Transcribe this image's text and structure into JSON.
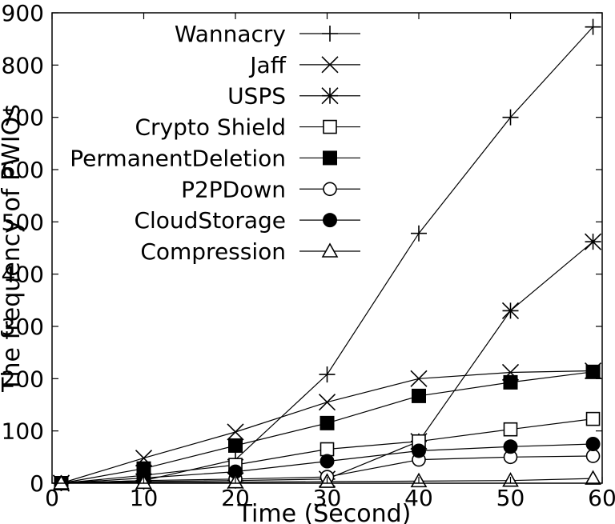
{
  "chart_data": {
    "type": "line",
    "title": "",
    "xlabel": "Time (Second)",
    "ylabel": "The frequency of PWIOs",
    "xlim": [
      0,
      60
    ],
    "ylim": [
      0,
      900
    ],
    "xticks": [
      0,
      10,
      20,
      30,
      40,
      50,
      60
    ],
    "yticks": [
      0,
      100,
      200,
      300,
      400,
      500,
      600,
      700,
      800,
      900
    ],
    "grid": false,
    "legend_position": "top-right",
    "x": [
      1,
      10,
      20,
      30,
      40,
      50,
      59
    ],
    "series": [
      {
        "name": "Wannacry",
        "marker": "plus",
        "values": [
          0,
          5,
          45,
          208,
          478,
          700,
          873
        ]
      },
      {
        "name": "Jaff",
        "marker": "cross",
        "values": [
          0,
          48,
          98,
          155,
          200,
          212,
          215
        ]
      },
      {
        "name": "USPS",
        "marker": "star",
        "values": [
          0,
          3,
          5,
          8,
          80,
          330,
          462
        ]
      },
      {
        "name": "Crypto Shield",
        "marker": "open-square",
        "values": [
          0,
          15,
          35,
          65,
          80,
          103,
          123
        ]
      },
      {
        "name": "PermanentDeletion",
        "marker": "filled-square",
        "values": [
          0,
          28,
          72,
          115,
          167,
          193,
          213
        ]
      },
      {
        "name": "P2PDown",
        "marker": "open-circle",
        "values": [
          0,
          5,
          8,
          12,
          45,
          50,
          52
        ]
      },
      {
        "name": "CloudStorage",
        "marker": "filled-circle",
        "values": [
          0,
          10,
          22,
          42,
          62,
          70,
          75
        ]
      },
      {
        "name": "Compression",
        "marker": "open-triangle",
        "values": [
          0,
          1,
          2,
          3,
          4,
          5,
          9
        ]
      }
    ]
  }
}
